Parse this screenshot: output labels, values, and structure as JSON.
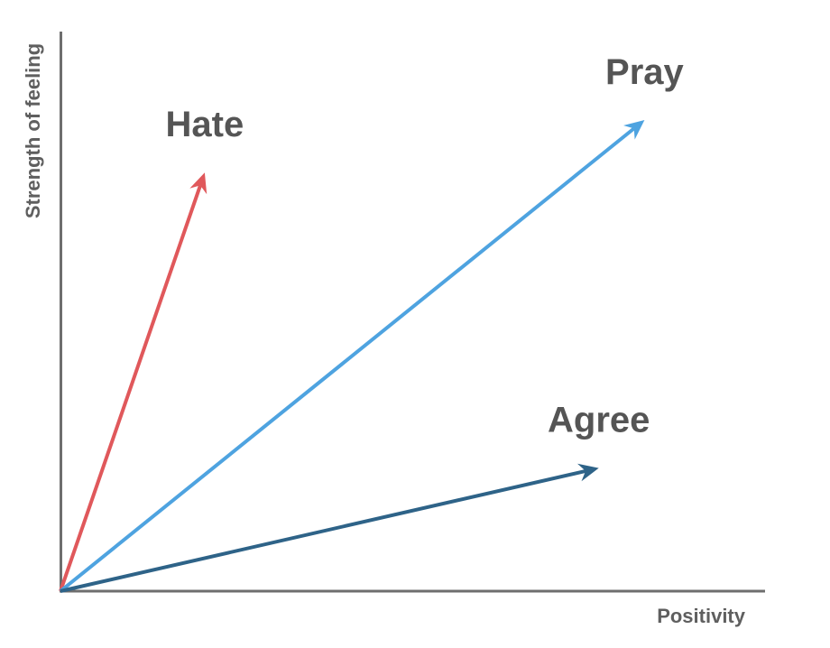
{
  "chart_data": {
    "type": "vector-diagram",
    "xlabel": "Positivity",
    "ylabel": "Strength of feeling",
    "xlim": [
      0,
      100
    ],
    "ylim": [
      0,
      100
    ],
    "vectors": [
      {
        "name": "Hate",
        "x": 20.5,
        "y": 74.8,
        "color": "#e0585b"
      },
      {
        "name": "Pray",
        "x": 83.0,
        "y": 84.2,
        "color": "#4ea3e0"
      },
      {
        "name": "Agree",
        "x": 76.5,
        "y": 22.0,
        "color": "#2e6388"
      }
    ]
  }
}
